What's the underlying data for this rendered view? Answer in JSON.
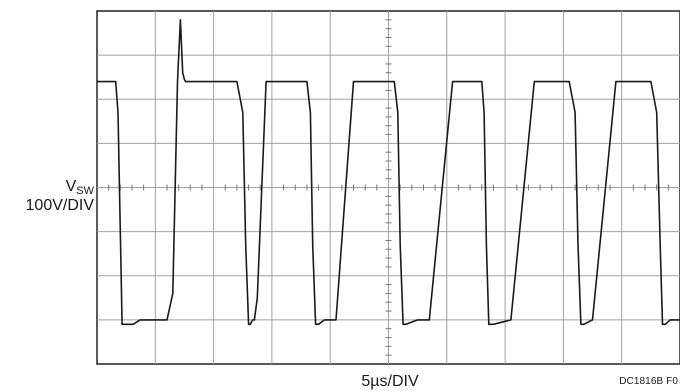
{
  "chart_data": {
    "type": "line",
    "title": "",
    "ylabel": {
      "main": "V",
      "subscript": "SW",
      "scale": "100V/DIV"
    },
    "xlabel": "5µs/DIV",
    "note": "DC1816B F0",
    "grid": true,
    "divisions": {
      "x": 10,
      "y": 8
    },
    "series": [
      {
        "x_div": [
          0.0,
          0.32,
          0.36,
          0.43,
          0.62,
          0.74,
          1.0,
          1.2,
          1.3,
          1.38,
          1.43,
          1.47,
          1.5,
          1.52,
          1.6,
          1.8,
          2.0,
          2.4,
          2.5,
          2.55,
          2.6,
          2.63,
          2.67,
          2.7,
          2.75,
          2.9,
          3.2,
          3.6,
          3.66,
          3.7,
          3.75,
          3.8,
          3.9,
          4.1,
          4.4,
          4.8,
          5.1,
          5.16,
          5.2,
          5.25,
          5.3,
          5.5,
          5.7,
          6.1,
          6.5,
          6.6,
          6.64,
          6.68,
          6.72,
          6.8,
          7.1,
          7.5,
          7.7,
          8.1,
          8.2,
          8.25,
          8.3,
          8.35,
          8.5,
          8.9,
          9.1,
          9.5,
          9.6,
          9.66,
          9.7,
          9.75,
          9.83,
          10.0
        ],
        "y_div": [
          2.4,
          2.4,
          1.7,
          -3.1,
          -3.1,
          -3.0,
          -3.0,
          -3.0,
          -2.4,
          2.4,
          3.8,
          2.6,
          2.45,
          2.4,
          2.4,
          2.4,
          2.4,
          2.4,
          1.7,
          -1.3,
          -3.1,
          -3.1,
          -3.0,
          -3.0,
          -2.5,
          2.4,
          2.4,
          2.4,
          1.7,
          -1.3,
          -3.1,
          -3.1,
          -3.0,
          -3.0,
          2.4,
          2.4,
          2.4,
          1.7,
          -1.3,
          -3.1,
          -3.1,
          -3.0,
          -3.0,
          2.4,
          2.4,
          2.4,
          1.7,
          -1.3,
          -3.1,
          -3.1,
          -3.0,
          2.4,
          2.4,
          2.4,
          1.7,
          -1.3,
          -3.1,
          -3.1,
          -3.0,
          2.4,
          2.4,
          2.4,
          1.7,
          -1.3,
          -3.1,
          -3.1,
          -3.0,
          -3.0
        ]
      }
    ]
  }
}
